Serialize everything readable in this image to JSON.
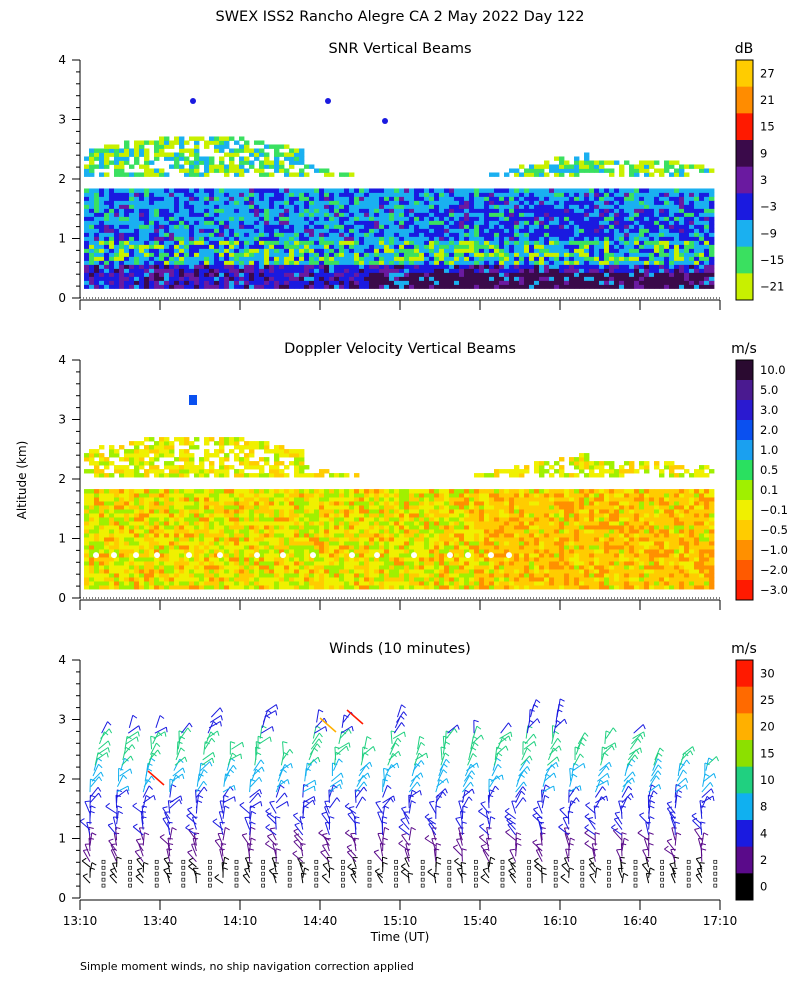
{
  "header": {
    "title": "SWEX ISS2 Rancho Alegre CA    2 May 2022 Day 122"
  },
  "footer": {
    "note": "Simple moment winds, no ship navigation correction applied"
  },
  "shared": {
    "ylabel": "Altitude (km)",
    "xlabel": "Time (UT)",
    "ylim": [
      0,
      4
    ],
    "yticks": [
      "0",
      "1",
      "2",
      "3",
      "4"
    ],
    "xticks": [
      "13:10",
      "13:40",
      "14:10",
      "14:40",
      "15:10",
      "15:40",
      "16:10",
      "16:40",
      "17:10"
    ]
  },
  "chart_data": [
    {
      "type": "heatmap",
      "title": "SNR Vertical Beams",
      "unit": "dB",
      "xlim": [
        "13:10",
        "17:10"
      ],
      "ylim": [
        0,
        4
      ],
      "colorbar": {
        "labels": [
          "27",
          "21",
          "15",
          "9",
          "3",
          "−3",
          "−9",
          "−15",
          "−21"
        ],
        "colors": [
          "#ffcc00",
          "#ff8c00",
          "#ff1a00",
          "#3a0a4a",
          "#6a1aa0",
          "#1a1ae0",
          "#1ab0f0",
          "#3ae060",
          "#c8f000"
        ]
      },
      "layers_km": [
        {
          "range": [
            0.2,
            0.5
          ],
          "label": "-3 to 9"
        },
        {
          "range": [
            0.5,
            0.9
          ],
          "label": "-9 to -15"
        },
        {
          "range": [
            0.9,
            1.8
          ],
          "label": "-3 to -9"
        },
        {
          "range": [
            2.0,
            2.6
          ],
          "label": "-15 to -21"
        }
      ]
    },
    {
      "type": "heatmap",
      "title": "Doppler Velocity Vertical Beams",
      "unit": "m/s",
      "xlim": [
        "13:10",
        "17:10"
      ],
      "ylim": [
        0,
        4
      ],
      "colorbar": {
        "labels": [
          "10.0",
          "5.0",
          "3.0",
          "2.0",
          "1.0",
          "0.5",
          "0.1",
          "−0.1",
          "−0.5",
          "−1.0",
          "−2.0",
          "−3.0"
        ],
        "colors": [
          "#2a0a30",
          "#4a1a90",
          "#2a1ad0",
          "#0a50f0",
          "#1aa0f0",
          "#2ae060",
          "#a0f000",
          "#f0f000",
          "#ffcc00",
          "#ff9000",
          "#ff5a00",
          "#ff1a00"
        ]
      },
      "layers_km": [
        {
          "range": [
            0.15,
            1.8
          ],
          "label": "-0.1 to -0.5"
        },
        {
          "range": [
            2.0,
            2.6
          ],
          "label": "-0.1 to -0.5"
        }
      ]
    },
    {
      "type": "wind_barbs",
      "title": "Winds (10 minutes)",
      "unit": "m/s",
      "interval_minutes": 10,
      "xlim": [
        "13:10",
        "17:10"
      ],
      "ylim": [
        0,
        4
      ],
      "colorbar": {
        "labels": [
          "30",
          "25",
          "20",
          "15",
          "10",
          "8",
          "4",
          "2",
          "0"
        ],
        "colors": [
          "#ff1a00",
          "#ff6a00",
          "#ffb000",
          "#8ce000",
          "#20d080",
          "#10b0f0",
          "#1a1ae0",
          "#5a0a8a",
          "#000000"
        ]
      }
    }
  ]
}
